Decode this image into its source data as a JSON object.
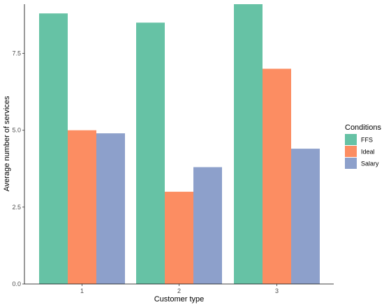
{
  "chart_data": {
    "type": "bar",
    "title": "",
    "xlabel": "Customer type",
    "ylabel": "Average number of services",
    "categories": [
      "1",
      "2",
      "3"
    ],
    "series": [
      {
        "name": "FFS",
        "color": "#66c2a5",
        "values": [
          8.8,
          8.5,
          9.1
        ]
      },
      {
        "name": "Ideal",
        "color": "#fc8d62",
        "values": [
          5.0,
          3.0,
          7.0
        ]
      },
      {
        "name": "Salary",
        "color": "#8da0cb",
        "values": [
          4.9,
          3.8,
          4.4
        ]
      }
    ],
    "ylim": [
      0,
      9.1
    ],
    "yticks": [
      0.0,
      2.5,
      5.0,
      7.5
    ],
    "ytick_labels": [
      "0.0",
      "2.5",
      "5.0",
      "7.5"
    ],
    "grid": false,
    "legend": {
      "title": "Conditions",
      "position": "right"
    }
  }
}
